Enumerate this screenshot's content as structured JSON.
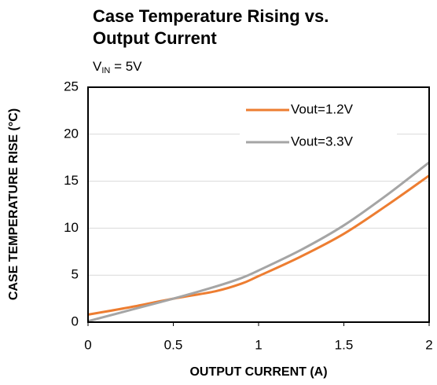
{
  "chart_data": {
    "type": "line",
    "title": [
      "Case Temperature Rising vs.",
      "Output Current"
    ],
    "subtitle": {
      "symbol": "V",
      "subscript": "IN",
      "rest": " = 5V"
    },
    "x_label": "OUTPUT CURRENT (A)",
    "y_label": "CASE TEMPERATURE RISE (°C)",
    "x": [
      0,
      0.25,
      0.5,
      0.75,
      0.9,
      1.0,
      1.25,
      1.5,
      1.75,
      2.0
    ],
    "series": [
      {
        "name": "Vout=1.2V",
        "color": "#ed7d31",
        "values": [
          0.8,
          1.6,
          2.5,
          3.3,
          4.1,
          4.9,
          7.0,
          9.4,
          12.4,
          15.6
        ]
      },
      {
        "name": "Vout=3.3V",
        "color": "#a5a5a5",
        "values": [
          0.1,
          1.3,
          2.5,
          3.8,
          4.7,
          5.5,
          7.7,
          10.3,
          13.5,
          17.0
        ]
      }
    ],
    "xlim": [
      0,
      2
    ],
    "xticks": [
      0,
      0.5,
      1,
      1.5,
      2
    ],
    "ylim": [
      0,
      25
    ],
    "yticks": [
      0,
      5,
      10,
      15,
      20,
      25
    ],
    "grid": true,
    "legend": "upper-right"
  }
}
